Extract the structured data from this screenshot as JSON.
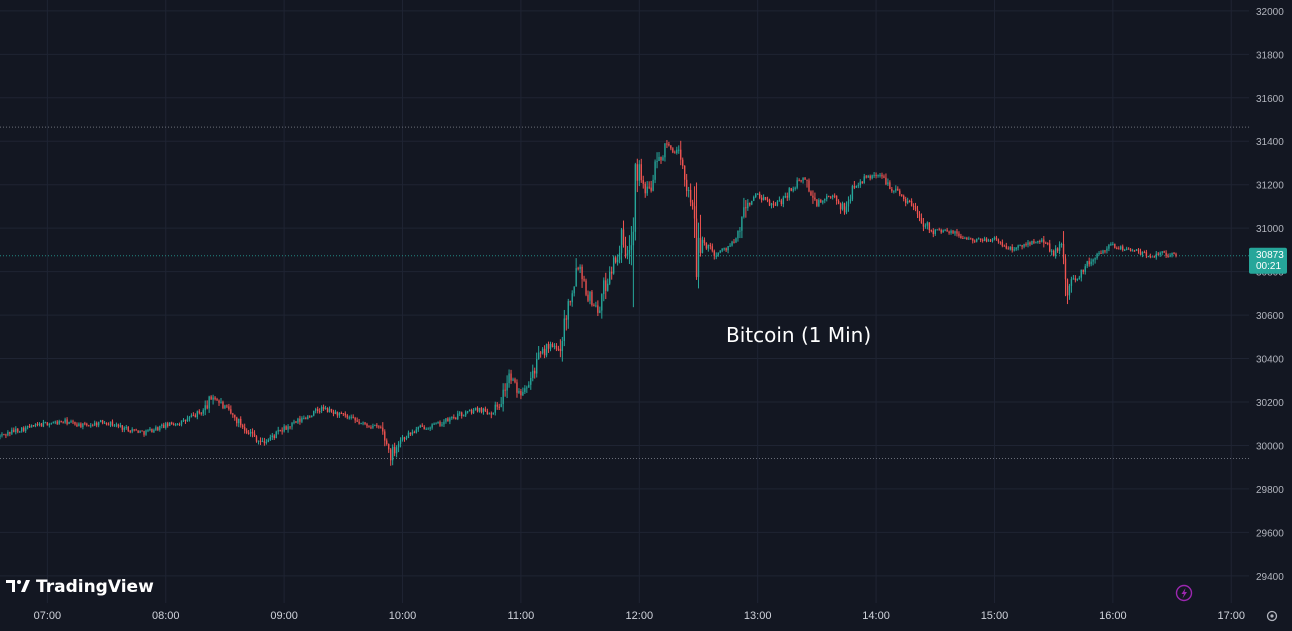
{
  "chart_data": {
    "type": "candlestick",
    "annotation": "Bitcoin (1 Min)",
    "watermark": "TradingView",
    "y_axis": {
      "ticks": [
        29400,
        29600,
        29800,
        30000,
        30200,
        30400,
        30600,
        30800,
        31000,
        31200,
        31400,
        31600,
        31800,
        32000
      ],
      "range": [
        29275,
        32050
      ],
      "position": "right"
    },
    "x_axis": {
      "ticks": [
        "07:00",
        "08:00",
        "09:00",
        "10:00",
        "11:00",
        "12:00",
        "13:00",
        "14:00",
        "15:00",
        "16:00",
        "17:00"
      ],
      "range": [
        "06:36",
        "17:09"
      ]
    },
    "last_price": {
      "value": "30873",
      "countdown": "00:21",
      "color": "#26a69a"
    },
    "reference_lines": [
      {
        "label": "high",
        "value": 31465
      },
      {
        "label": "low",
        "value": 29940
      }
    ],
    "grid": true,
    "colors": {
      "background": "#131722",
      "up": "#26a69a",
      "down": "#ef5350",
      "grid": "#1f2433",
      "icon": "#9c27b0"
    },
    "price_path": [
      [
        "06:36",
        30040
      ],
      [
        "06:45",
        30070
      ],
      [
        "07:00",
        30100
      ],
      [
        "07:10",
        30110
      ],
      [
        "07:20",
        30090
      ],
      [
        "07:30",
        30110
      ],
      [
        "07:40",
        30080
      ],
      [
        "07:50",
        30060
      ],
      [
        "08:00",
        30090
      ],
      [
        "08:10",
        30110
      ],
      [
        "08:20",
        30160
      ],
      [
        "08:25",
        30230
      ],
      [
        "08:30",
        30180
      ],
      [
        "08:40",
        30090
      ],
      [
        "08:45",
        30050
      ],
      [
        "08:50",
        30010
      ],
      [
        "09:00",
        30070
      ],
      [
        "09:10",
        30120
      ],
      [
        "09:20",
        30170
      ],
      [
        "09:30",
        30140
      ],
      [
        "09:40",
        30100
      ],
      [
        "09:50",
        30080
      ],
      [
        "09:55",
        29960
      ],
      [
        "10:00",
        30030
      ],
      [
        "10:10",
        30080
      ],
      [
        "10:20",
        30100
      ],
      [
        "10:30",
        30140
      ],
      [
        "10:40",
        30170
      ],
      [
        "10:45",
        30150
      ],
      [
        "10:50",
        30190
      ],
      [
        "10:55",
        30320
      ],
      [
        "11:00",
        30240
      ],
      [
        "11:05",
        30300
      ],
      [
        "11:10",
        30400
      ],
      [
        "11:15",
        30460
      ],
      [
        "11:20",
        30440
      ],
      [
        "11:25",
        30650
      ],
      [
        "11:30",
        30850
      ],
      [
        "11:35",
        30700
      ],
      [
        "11:40",
        30620
      ],
      [
        "11:45",
        30780
      ],
      [
        "11:50",
        30880
      ],
      [
        "11:52",
        30950
      ],
      [
        "11:55",
        30850
      ],
      [
        "11:57",
        31000
      ],
      [
        "11:58",
        31450
      ],
      [
        "12:00",
        31300
      ],
      [
        "12:05",
        31150
      ],
      [
        "12:10",
        31300
      ],
      [
        "12:15",
        31380
      ],
      [
        "12:20",
        31350
      ],
      [
        "12:25",
        31200
      ],
      [
        "12:28",
        31120
      ],
      [
        "12:30",
        30750
      ],
      [
        "12:32",
        30950
      ],
      [
        "12:40",
        30880
      ],
      [
        "12:50",
        30940
      ],
      [
        "12:55",
        31100
      ],
      [
        "13:00",
        31150
      ],
      [
        "13:10",
        31100
      ],
      [
        "13:20",
        31200
      ],
      [
        "13:25",
        31230
      ],
      [
        "13:30",
        31110
      ],
      [
        "13:40",
        31150
      ],
      [
        "13:45",
        31080
      ],
      [
        "13:50",
        31200
      ],
      [
        "14:00",
        31250
      ],
      [
        "14:05",
        31230
      ],
      [
        "14:10",
        31180
      ],
      [
        "14:20",
        31100
      ],
      [
        "14:25",
        31030
      ],
      [
        "14:30",
        30990
      ],
      [
        "14:40",
        30980
      ],
      [
        "14:50",
        30940
      ],
      [
        "15:00",
        30950
      ],
      [
        "15:10",
        30900
      ],
      [
        "15:20",
        30940
      ],
      [
        "15:25",
        30950
      ],
      [
        "15:30",
        30880
      ],
      [
        "15:35",
        30920
      ],
      [
        "15:38",
        30700
      ],
      [
        "15:40",
        30750
      ],
      [
        "15:50",
        30850
      ],
      [
        "15:55",
        30900
      ],
      [
        "16:00",
        30920
      ],
      [
        "16:10",
        30900
      ],
      [
        "16:20",
        30870
      ],
      [
        "16:25",
        30890
      ],
      [
        "16:32",
        30873
      ]
    ]
  }
}
